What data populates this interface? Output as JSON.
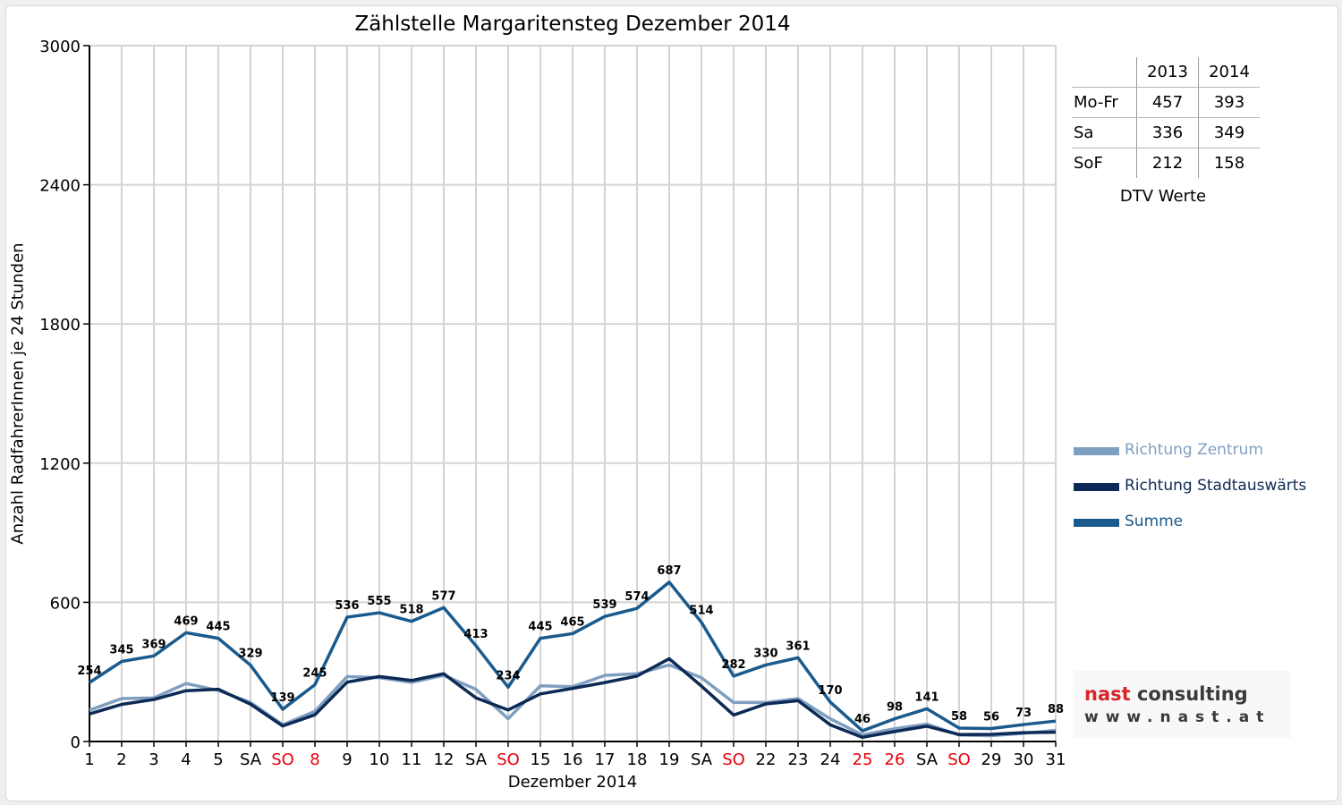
{
  "chart_data": {
    "type": "line",
    "title": "Zählstelle Margaritensteg Dezember 2014",
    "xlabel": "Dezember 2014",
    "ylabel": "Anzahl RadfahrerInnen je 24 Stunden",
    "ylim": [
      0,
      3000
    ],
    "yticks": [
      "0",
      "600",
      "1200",
      "1800",
      "2400",
      "3000"
    ],
    "grid": true,
    "legend_position": "right",
    "categories": [
      "1",
      "2",
      "3",
      "4",
      "5",
      "SA",
      "SO",
      "8",
      "9",
      "10",
      "11",
      "12",
      "SA",
      "SO",
      "15",
      "16",
      "17",
      "18",
      "19",
      "SA",
      "SO",
      "22",
      "23",
      "24",
      "25",
      "26",
      "SA",
      "SO",
      "29",
      "30",
      "31"
    ],
    "highlighted_categories": [
      6,
      7,
      13,
      20,
      24,
      25,
      27
    ],
    "series": [
      {
        "name": "Richtung Zentrum",
        "color": "#7f9fc0",
        "values": [
          135,
          185,
          188,
          250,
          220,
          168,
          72,
          130,
          280,
          275,
          255,
          285,
          225,
          98,
          240,
          236,
          285,
          292,
          330,
          275,
          168,
          168,
          185,
          98,
          28,
          55,
          75,
          28,
          25,
          35,
          48
        ]
      },
      {
        "name": "Richtung Stadtauswärts",
        "color": "#0c2a55",
        "values": [
          119,
          160,
          181,
          219,
          225,
          161,
          67,
          115,
          256,
          280,
          263,
          292,
          188,
          136,
          205,
          229,
          254,
          282,
          357,
          239,
          114,
          162,
          176,
          72,
          18,
          43,
          66,
          30,
          31,
          38,
          40
        ]
      },
      {
        "name": "Summe",
        "color": "#1a5a8c",
        "values": [
          254,
          345,
          369,
          469,
          445,
          329,
          139,
          245,
          536,
          555,
          518,
          577,
          413,
          234,
          445,
          465,
          539,
          574,
          687,
          514,
          282,
          330,
          361,
          170,
          46,
          98,
          141,
          58,
          56,
          73,
          88
        ]
      }
    ],
    "data_labels": [
      "254",
      "345",
      "369",
      "469",
      "445",
      "329",
      "139",
      "245",
      "536",
      "555",
      "518",
      "577",
      "413",
      "234",
      "445",
      "465",
      "539",
      "574",
      "687",
      "514",
      "282",
      "330",
      "361",
      "170",
      "46",
      "98",
      "141",
      "58",
      "56",
      "73",
      "88"
    ],
    "label_color": "#000000",
    "highlight_color": "#e8000b"
  },
  "dtv_table": {
    "headers": [
      "",
      "2013",
      "2014"
    ],
    "rows": [
      {
        "label": "Mo-Fr",
        "v2013": "457",
        "v2014": "393"
      },
      {
        "label": "Sa",
        "v2013": "336",
        "v2014": "349"
      },
      {
        "label": "SoF",
        "v2013": "212",
        "v2014": "158"
      }
    ],
    "caption": "DTV Werte"
  },
  "logo": {
    "part1": "nast",
    "part2": "consulting",
    "url": "www.nast.at"
  }
}
